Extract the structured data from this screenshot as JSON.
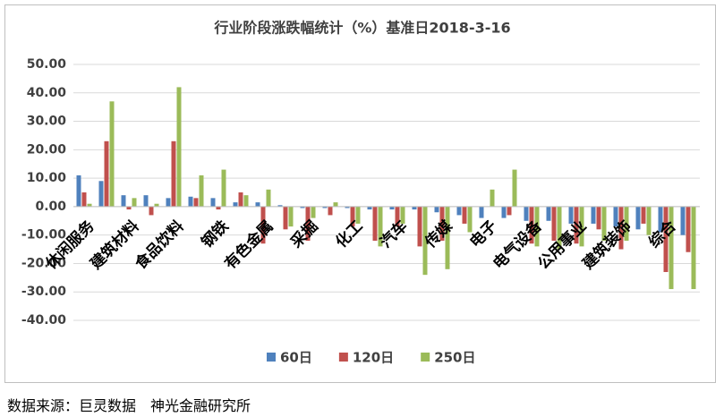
{
  "chart_data": {
    "type": "bar",
    "title": "行业阶段涨跌幅统计（%）基准日2018-3-16",
    "categories": [
      "休闲服务",
      null,
      "建筑材料",
      null,
      "食品饮料",
      null,
      "钢铁",
      null,
      "有色金属",
      null,
      "采掘",
      null,
      "化工",
      null,
      "汽车",
      null,
      "传媒",
      null,
      "电子",
      null,
      "电气设备",
      null,
      "公用事业",
      null,
      "建筑装饰",
      null,
      "综合",
      null
    ],
    "series": [
      {
        "name": "60日",
        "color": "#4f81bd",
        "values": [
          11,
          9,
          4,
          4,
          3,
          3.5,
          3,
          1.5,
          1.5,
          0.5,
          -0.5,
          -0.5,
          -0.5,
          -1,
          -1,
          -1,
          -2,
          -3,
          -4,
          -4,
          -5,
          -5,
          -6,
          -6,
          -7,
          -8,
          -9,
          -10
        ]
      },
      {
        "name": "120日",
        "color": "#c0504d",
        "values": [
          5,
          23,
          -1,
          -3,
          23,
          3,
          -1,
          5,
          -13,
          -8,
          -12,
          -3,
          -7,
          -12,
          -7,
          -14,
          -12,
          -6,
          0,
          -3,
          -13,
          -12,
          -13,
          -8,
          -15,
          -6,
          -23,
          -16
        ]
      },
      {
        "name": "250日",
        "color": "#9bbb59",
        "values": [
          1,
          37,
          3,
          1,
          42,
          11,
          13,
          4,
          6,
          -7,
          -4,
          1.5,
          -6,
          -14,
          -6,
          -24,
          -22,
          -9,
          6,
          13,
          -14,
          -15,
          -14,
          -12,
          -12,
          -10,
          -29,
          -29
        ]
      }
    ],
    "ylim": [
      -40,
      50
    ],
    "yticks": [
      {
        "value": -40,
        "label": "-40.00"
      },
      {
        "value": -30,
        "label": "-30.00"
      },
      {
        "value": -20,
        "label": "-20.00"
      },
      {
        "value": -10,
        "label": "-10.00"
      },
      {
        "value": 0,
        "label": "0.00"
      },
      {
        "value": 10,
        "label": "10.00"
      },
      {
        "value": 20,
        "label": "20.00"
      },
      {
        "value": 30,
        "label": "30.00"
      },
      {
        "value": 40,
        "label": "40.00"
      },
      {
        "value": 50,
        "label": "50.00"
      }
    ],
    "grid": true,
    "source": "数据来源：巨灵数据　神光金融研究所"
  }
}
